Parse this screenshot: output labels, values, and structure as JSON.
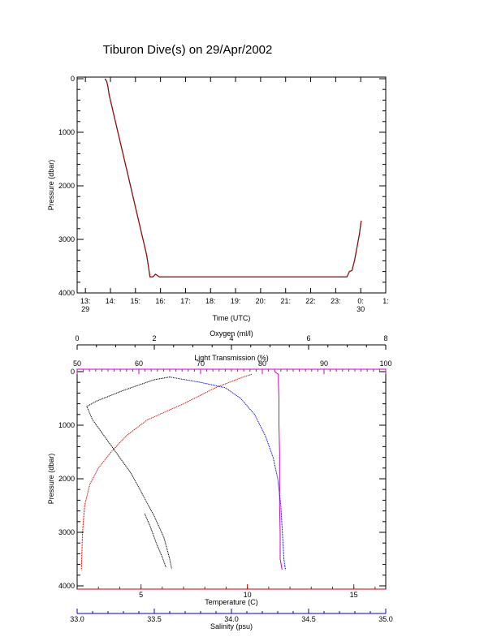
{
  "title": "Tiburon Dive(s) on 29/Apr/2002",
  "chart_data": [
    {
      "type": "line",
      "xlabel": "Time (UTC)",
      "ylabel": "Pressure (dbar)",
      "xlim": [
        12.67,
        25.0
      ],
      "ylim": [
        4000,
        0
      ],
      "x_ticks": [
        {
          "v": 13,
          "label": "13:",
          "sub": "29"
        },
        {
          "v": 14,
          "label": "14:",
          "sub": ""
        },
        {
          "v": 15,
          "label": "15:",
          "sub": ""
        },
        {
          "v": 16,
          "label": "16:",
          "sub": ""
        },
        {
          "v": 17,
          "label": "17:",
          "sub": ""
        },
        {
          "v": 18,
          "label": "18:",
          "sub": ""
        },
        {
          "v": 19,
          "label": "19:",
          "sub": ""
        },
        {
          "v": 20,
          "label": "20:",
          "sub": ""
        },
        {
          "v": 21,
          "label": "21:",
          "sub": ""
        },
        {
          "v": 22,
          "label": "22:",
          "sub": ""
        },
        {
          "v": 23,
          "label": "23:",
          "sub": ""
        },
        {
          "v": 24,
          "label": "0:",
          "sub": "30"
        },
        {
          "v": 25,
          "label": "1:",
          "sub": ""
        }
      ],
      "y_ticks": [
        0,
        1000,
        2000,
        3000,
        4000
      ],
      "series": [
        {
          "color": "#000000",
          "x": [
            13.78,
            13.85,
            13.9,
            13.95,
            14.3,
            14.7,
            15.1,
            15.45,
            15.58,
            15.7,
            15.8,
            15.95,
            17.0,
            18.0,
            19.0,
            20.0,
            21.0,
            22.0,
            23.0,
            23.45,
            23.55,
            23.65,
            23.75,
            23.85,
            23.95,
            24.02
          ],
          "y": [
            0,
            50,
            150,
            300,
            1000,
            1800,
            2600,
            3300,
            3700,
            3700,
            3650,
            3700,
            3700,
            3700,
            3700,
            3700,
            3700,
            3700,
            3700,
            3700,
            3600,
            3580,
            3400,
            3150,
            2900,
            2650
          ]
        },
        {
          "color": "#cc0000",
          "x": [
            13.78,
            13.85,
            13.9,
            13.95,
            14.3,
            14.7,
            15.1,
            15.45,
            15.58,
            15.7,
            15.8,
            15.95,
            17.0,
            18.0,
            19.0,
            20.0,
            21.0,
            22.0,
            23.0,
            23.45,
            23.55,
            23.65,
            23.75,
            23.85,
            23.95,
            24.02
          ],
          "y": [
            0,
            50,
            150,
            300,
            1000,
            1800,
            2600,
            3300,
            3700,
            3700,
            3650,
            3700,
            3700,
            3700,
            3700,
            3700,
            3700,
            3700,
            3700,
            3700,
            3600,
            3580,
            3400,
            3150,
            2900,
            2650
          ]
        }
      ]
    },
    {
      "type": "line",
      "ylabel": "Pressure (dbar)",
      "ylim": [
        4000,
        0
      ],
      "y_ticks": [
        0,
        1000,
        2000,
        3000,
        4000
      ],
      "axes": {
        "oxygen": {
          "label": "Oxygen (ml/l)",
          "range": [
            0,
            8
          ],
          "ticks": [
            0,
            2,
            4,
            6,
            8
          ],
          "color": "#000000",
          "position": "top"
        },
        "light": {
          "label": "Light Transmission (%)",
          "range": [
            50,
            100
          ],
          "ticks": [
            50,
            60,
            70,
            80,
            90,
            100
          ],
          "color": "#cc00cc",
          "position": "top"
        },
        "temperature": {
          "label": "Temperature (C)",
          "range": [
            2.0,
            16.5
          ],
          "ticks": [
            5,
            10,
            15
          ],
          "color": "#cc0000",
          "position": "bottom"
        },
        "salinity": {
          "label": "Salinity (psu)",
          "range": [
            33.0,
            35.0
          ],
          "ticks": [
            33.0,
            33.5,
            34.0,
            34.5,
            35.0
          ],
          "tick_labels": [
            "33.0",
            "33.5",
            "34.0",
            "34.5",
            "35.0"
          ],
          "color": "#0000cc",
          "position": "bottom"
        }
      },
      "series": [
        {
          "name": "Oxygen",
          "axis": "oxygen",
          "color": "#000000",
          "x": [
            2.4,
            2.0,
            1.2,
            0.5,
            0.25,
            0.4,
            0.7,
            1.0,
            1.4,
            1.7,
            2.0,
            2.25,
            2.4,
            2.45
          ],
          "y": [
            100,
            150,
            350,
            550,
            650,
            900,
            1200,
            1500,
            1900,
            2300,
            2700,
            3100,
            3500,
            3680
          ]
        },
        {
          "name": "Oxygen",
          "axis": "oxygen",
          "color": "#000000",
          "x": [
            1.75,
            1.9,
            2.05,
            2.2,
            2.3
          ],
          "y": [
            2650,
            2900,
            3200,
            3450,
            3650
          ]
        },
        {
          "name": "Temperature",
          "axis": "temperature",
          "color": "#cc0000",
          "x": [
            10.2,
            9.8,
            8.5,
            7.0,
            5.3,
            4.3,
            3.6,
            3.0,
            2.6,
            2.35,
            2.25,
            2.2
          ],
          "y": [
            50,
            100,
            300,
            600,
            900,
            1200,
            1500,
            1800,
            2100,
            2500,
            3000,
            3700
          ]
        },
        {
          "name": "Light Transmission",
          "axis": "light",
          "color": "#cc00cc",
          "x": [
            82.0,
            82.6,
            82.6,
            82.7,
            82.7,
            82.8,
            82.8,
            82.8,
            82.9,
            82.9,
            83.2
          ],
          "y": [
            0,
            50,
            200,
            500,
            1000,
            1500,
            2000,
            2500,
            3000,
            3500,
            3700
          ]
        },
        {
          "name": "Salinity",
          "axis": "salinity",
          "color": "#0000cc",
          "x": [
            33.6,
            33.8,
            33.96,
            34.06,
            34.15,
            34.22,
            34.27,
            34.3,
            34.32,
            34.33,
            34.34,
            34.35
          ],
          "y": [
            100,
            200,
            300,
            500,
            800,
            1200,
            1600,
            2000,
            2500,
            3000,
            3500,
            3700
          ]
        }
      ]
    }
  ]
}
